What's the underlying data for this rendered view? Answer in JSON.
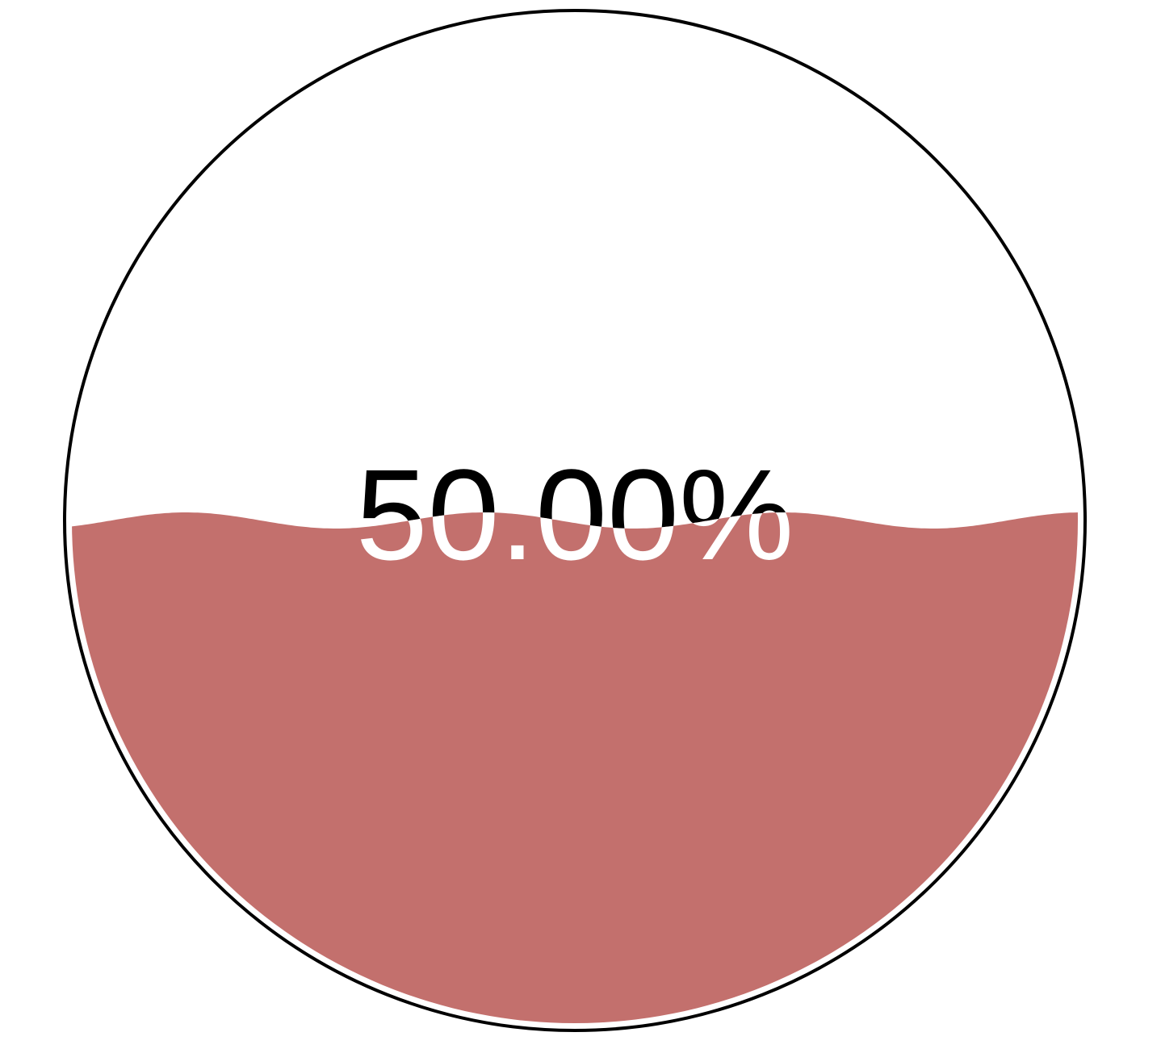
{
  "chart_data": {
    "type": "liquid-fill-gauge",
    "value": 50.0,
    "value_label": "50.00%",
    "min": 0,
    "max": 100,
    "fill_color": "#c3706d",
    "outline_color": "#000000",
    "text_color_above": "#000000",
    "text_color_below": "#ffffff"
  }
}
